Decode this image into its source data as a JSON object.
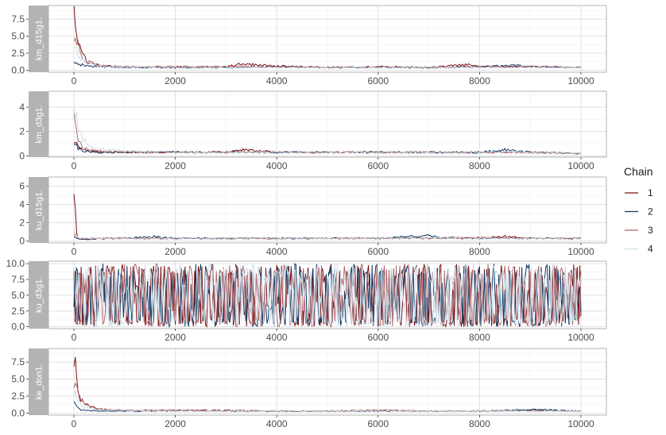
{
  "chart_data": {
    "type": "line",
    "xlabel": "",
    "ylabel": "",
    "legend": {
      "title": "Chain",
      "position": "right",
      "entries": [
        {
          "label": "1",
          "color": "#7b1113"
        },
        {
          "label": "2",
          "color": "#0e3a64"
        },
        {
          "label": "3",
          "color": "#b0676b"
        },
        {
          "label": "4",
          "color": "#cfdfea"
        }
      ]
    },
    "grid": true,
    "x_ticks": [
      0,
      2000,
      4000,
      6000,
      8000,
      10000
    ],
    "xlim": [
      -500,
      10500
    ],
    "panels": [
      {
        "strip": "km_d15g1.",
        "ylim": [
          -0.3,
          9.5
        ],
        "y_ticks": [
          0.0,
          2.5,
          5.0,
          7.5
        ],
        "y_tick_labels": [
          "0.0",
          "2.5",
          "5.0",
          "7.5"
        ],
        "series": [
          {
            "chain": "1",
            "x": [
              0,
              30,
              60,
              100,
              150,
              200,
              300,
              400,
              600,
              1000,
              2000,
              3000,
              3300,
              4000,
              5000,
              6000,
              7000,
              7800,
              8000,
              9000,
              10000
            ],
            "y": [
              9.0,
              7.5,
              5.0,
              3.5,
              2.5,
              1.8,
              1.2,
              0.8,
              0.6,
              0.5,
              0.4,
              0.5,
              0.9,
              0.6,
              0.4,
              0.5,
              0.4,
              0.8,
              0.5,
              0.5,
              0.4
            ]
          },
          {
            "chain": "2",
            "x": [
              0,
              50,
              100,
              200,
              300,
              500,
              1000,
              2000,
              3000,
              4000,
              5000,
              6000,
              7000,
              8000,
              8800,
              9000,
              10000
            ],
            "y": [
              1.2,
              1.1,
              0.9,
              0.7,
              0.6,
              0.5,
              0.4,
              0.4,
              0.4,
              0.5,
              0.4,
              0.4,
              0.4,
              0.5,
              0.7,
              0.5,
              0.4
            ]
          },
          {
            "chain": "3",
            "x": [
              0,
              50,
              100,
              200,
              300,
              500,
              1000,
              2000,
              3000,
              4000,
              5000,
              6000,
              7000,
              8000,
              9000,
              10000
            ],
            "y": [
              5.0,
              4.5,
              3.0,
              1.8,
              1.2,
              0.7,
              0.5,
              0.5,
              0.5,
              0.5,
              0.4,
              0.5,
              0.4,
              0.5,
              0.5,
              0.4
            ]
          },
          {
            "chain": "4",
            "x": [
              0,
              50,
              100,
              200,
              400,
              600,
              1000,
              2000,
              3000,
              4000,
              5000,
              6000,
              7000,
              8000,
              9000,
              10000
            ],
            "y": [
              3.5,
              3.0,
              2.0,
              1.5,
              0.8,
              0.6,
              0.5,
              0.4,
              0.4,
              0.4,
              0.4,
              0.4,
              0.4,
              0.4,
              0.4,
              0.4
            ]
          }
        ]
      },
      {
        "strip": "km_d3g1.",
        "ylim": [
          -0.1,
          5.3
        ],
        "y_ticks": [
          0,
          2,
          4
        ],
        "y_tick_labels": [
          "0",
          "2",
          "4"
        ],
        "series": [
          {
            "chain": "1",
            "x": [
              0,
              30,
              60,
              100,
              200,
              300,
              500,
              1000,
              2000,
              3000,
              3300,
              4000,
              5000,
              6000,
              7000,
              8000,
              9000,
              10000
            ],
            "y": [
              1.4,
              1.2,
              0.9,
              0.7,
              0.5,
              0.4,
              0.3,
              0.3,
              0.3,
              0.3,
              0.5,
              0.3,
              0.3,
              0.3,
              0.3,
              0.3,
              0.3,
              0.2
            ]
          },
          {
            "chain": "2",
            "x": [
              0,
              50,
              100,
              200,
              500,
              1000,
              2000,
              3000,
              4000,
              5000,
              6000,
              7000,
              8000,
              8500,
              9000,
              10000
            ],
            "y": [
              1.0,
              0.8,
              0.6,
              0.4,
              0.3,
              0.3,
              0.3,
              0.3,
              0.3,
              0.3,
              0.3,
              0.3,
              0.3,
              0.5,
              0.3,
              0.2
            ]
          },
          {
            "chain": "3",
            "x": [
              0,
              50,
              100,
              200,
              500,
              1000,
              2000,
              3000,
              4000,
              5000,
              6000,
              7000,
              8000,
              9000,
              10000
            ],
            "y": [
              3.0,
              2.0,
              1.2,
              0.6,
              0.4,
              0.3,
              0.3,
              0.3,
              0.3,
              0.3,
              0.3,
              0.3,
              0.3,
              0.3,
              0.2
            ]
          },
          {
            "chain": "4",
            "x": [
              0,
              30,
              80,
              150,
              300,
              600,
              1000,
              2000,
              3000,
              4000,
              5000,
              6000,
              7000,
              8000,
              9000,
              10000
            ],
            "y": [
              5.0,
              3.5,
              2.5,
              1.5,
              0.8,
              0.5,
              0.4,
              0.3,
              0.3,
              0.3,
              0.3,
              0.3,
              0.3,
              0.3,
              0.3,
              0.2
            ]
          }
        ]
      },
      {
        "strip": "ku_d15g1.",
        "ylim": [
          -0.2,
          7.0
        ],
        "y_ticks": [
          0,
          2,
          4,
          6
        ],
        "y_tick_labels": [
          "0",
          "2",
          "4",
          "6"
        ],
        "series": [
          {
            "chain": "1",
            "x": [
              0,
              20,
              40,
              60,
              100,
              200,
              1000,
              2000,
              3000,
              4000,
              5000,
              6000,
              7000,
              8000,
              8500,
              9000,
              10000
            ],
            "y": [
              6.8,
              4.0,
              1.5,
              0.6,
              0.3,
              0.2,
              0.3,
              0.3,
              0.3,
              0.3,
              0.3,
              0.3,
              0.3,
              0.3,
              0.5,
              0.3,
              0.3
            ]
          },
          {
            "chain": "2",
            "x": [
              0,
              100,
              200,
              500,
              1000,
              1600,
              2000,
              3000,
              4000,
              5000,
              6000,
              7000,
              7200,
              8000,
              9000,
              10000
            ],
            "y": [
              0.5,
              0.3,
              0.2,
              0.3,
              0.3,
              0.5,
              0.3,
              0.3,
              0.3,
              0.3,
              0.3,
              0.6,
              0.4,
              0.3,
              0.3,
              0.3
            ]
          },
          {
            "chain": "3",
            "x": [
              0,
              100,
              500,
              1000,
              2000,
              3000,
              4000,
              5000,
              6000,
              7000,
              8000,
              9000,
              10000
            ],
            "y": [
              0.8,
              0.3,
              0.3,
              0.3,
              0.3,
              0.3,
              0.3,
              0.3,
              0.3,
              0.3,
              0.4,
              0.3,
              0.3
            ]
          },
          {
            "chain": "4",
            "x": [
              0,
              100,
              500,
              1000,
              2000,
              3000,
              4000,
              5000,
              6000,
              7000,
              8000,
              9000,
              10000
            ],
            "y": [
              1.0,
              0.3,
              0.3,
              0.3,
              0.3,
              0.3,
              0.3,
              0.3,
              0.3,
              0.3,
              0.3,
              0.3,
              0.3
            ]
          }
        ]
      },
      {
        "strip": "ku_d3g1.",
        "ylim": [
          -0.3,
          10.4
        ],
        "y_ticks": [
          0.0,
          2.5,
          5.0,
          7.5,
          10.0
        ],
        "y_tick_labels": [
          "0.0",
          "2.5",
          "5.0",
          "7.5",
          "10.0"
        ],
        "range": [
          0,
          10
        ],
        "series": [
          {
            "chain": "1"
          },
          {
            "chain": "2"
          },
          {
            "chain": "3"
          },
          {
            "chain": "4"
          }
        ]
      },
      {
        "strip": "ke_don1.",
        "ylim": [
          -0.3,
          9.5
        ],
        "y_ticks": [
          0.0,
          2.5,
          5.0,
          7.5
        ],
        "y_tick_labels": [
          "0.0",
          "2.5",
          "5.0",
          "7.5"
        ],
        "series": [
          {
            "chain": "1",
            "x": [
              0,
              30,
              60,
              100,
              150,
              200,
              300,
              500,
              1000,
              2000,
              3000,
              4000,
              5000,
              6000,
              7000,
              8000,
              9000,
              10000
            ],
            "y": [
              9.0,
              7.5,
              5.0,
              3.0,
              2.0,
              1.5,
              1.0,
              0.6,
              0.4,
              0.4,
              0.4,
              0.3,
              0.3,
              0.4,
              0.3,
              0.3,
              0.4,
              0.3
            ]
          },
          {
            "chain": "2",
            "x": [
              0,
              50,
              100,
              200,
              500,
              1000,
              2000,
              3000,
              4000,
              5000,
              6000,
              7000,
              8000,
              9000,
              10000
            ],
            "y": [
              1.5,
              1.0,
              0.6,
              0.4,
              0.3,
              0.3,
              0.3,
              0.3,
              0.3,
              0.3,
              0.3,
              0.3,
              0.3,
              0.5,
              0.3
            ]
          },
          {
            "chain": "3",
            "x": [
              0,
              50,
              100,
              200,
              300,
              500,
              1000,
              2000,
              3000,
              4000,
              5000,
              6000,
              7000,
              8000,
              9000,
              10000
            ],
            "y": [
              4.5,
              4.0,
              2.5,
              1.5,
              1.0,
              0.6,
              0.4,
              0.4,
              0.3,
              0.3,
              0.3,
              0.4,
              0.3,
              0.3,
              0.3,
              0.3
            ]
          },
          {
            "chain": "4",
            "x": [
              0,
              50,
              100,
              200,
              500,
              1000,
              2000,
              3000,
              4000,
              5000,
              6000,
              7000,
              8000,
              9000,
              10000
            ],
            "y": [
              3.0,
              2.5,
              1.5,
              0.8,
              0.5,
              0.4,
              0.3,
              0.3,
              0.3,
              0.3,
              0.3,
              0.3,
              0.3,
              0.3,
              0.3
            ]
          }
        ]
      }
    ]
  }
}
